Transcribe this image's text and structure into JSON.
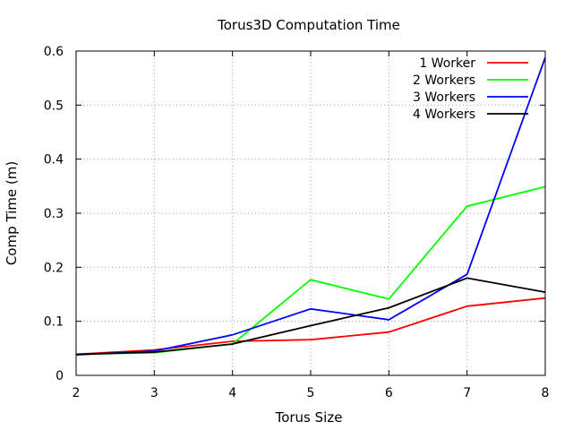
{
  "chart_data": {
    "type": "line",
    "title": "Torus3D Computation Time",
    "xlabel": "Torus Size",
    "ylabel": "Comp Time (m)",
    "x": [
      2,
      3,
      4,
      5,
      6,
      7,
      8
    ],
    "xlim": [
      2,
      8
    ],
    "ylim": [
      0,
      0.6
    ],
    "xticks": [
      "2",
      "3",
      "4",
      "5",
      "6",
      "7",
      "8"
    ],
    "yticks": [
      "0",
      "0.1",
      "0.2",
      "0.3",
      "0.4",
      "0.5",
      "0.6"
    ],
    "grid": true,
    "legend_position": "top-right",
    "series": [
      {
        "name": "1 Worker",
        "color": "#ff0000",
        "values": [
          0.039,
          0.047,
          0.063,
          0.066,
          0.08,
          0.128,
          0.143
        ]
      },
      {
        "name": "2 Workers",
        "color": "#00ff00",
        "values": [
          0.039,
          0.042,
          0.058,
          0.177,
          0.141,
          0.313,
          0.349
        ]
      },
      {
        "name": "3 Workers",
        "color": "#0000ff",
        "values": [
          0.038,
          0.045,
          0.075,
          0.123,
          0.103,
          0.187,
          0.588
        ]
      },
      {
        "name": "4 Workers",
        "color": "#000000",
        "values": [
          0.039,
          0.043,
          0.058,
          0.092,
          0.125,
          0.18,
          0.154
        ]
      }
    ]
  }
}
